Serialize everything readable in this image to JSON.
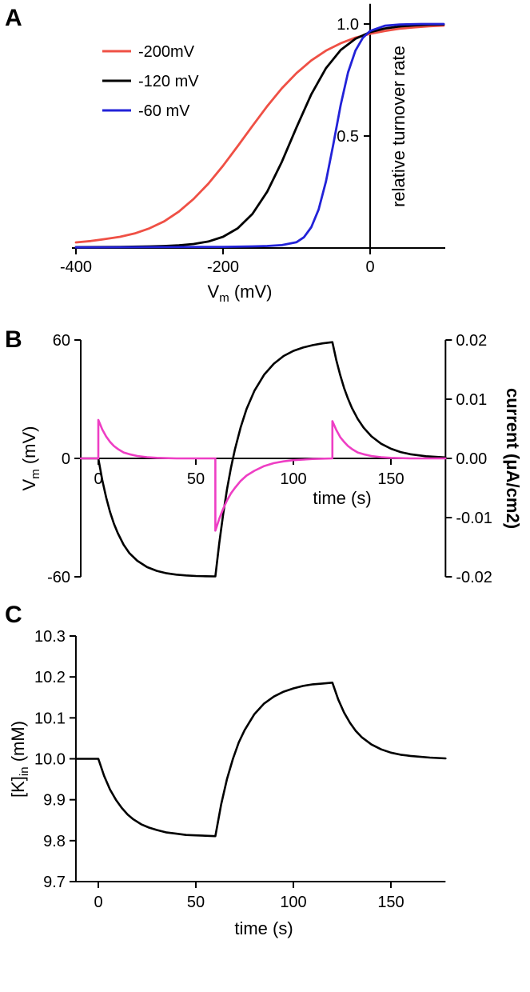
{
  "chart_data": [
    {
      "id": "A",
      "panel_label": "A",
      "type": "line",
      "title": "",
      "xlabel_parts": [
        {
          "t": "V"
        },
        {
          "t": "m",
          "sub": true
        },
        {
          "t": " (mV)"
        }
      ],
      "ylabel": "relative turnover rate",
      "xlim": [
        -400,
        100
      ],
      "ylim": [
        0,
        1.09
      ],
      "y_axis_at_x": 0,
      "grid": false,
      "x_ticks": [
        {
          "v": -400,
          "label": "-400"
        },
        {
          "v": -200,
          "label": "-200"
        },
        {
          "v": 0,
          "label": "0"
        }
      ],
      "y_ticks": [
        {
          "v": 0.5,
          "label": "0.5"
        },
        {
          "v": 1.0,
          "label": "1.0"
        }
      ],
      "legend_position": "top-left",
      "legend": [
        {
          "label": "-200mV",
          "color": "#ef5045"
        },
        {
          "label": "-120 mV",
          "color": "#000000"
        },
        {
          "label": "-60 mV",
          "color": "#2222d8"
        }
      ],
      "series": [
        {
          "key": "v-half-200",
          "name": "-200mV",
          "color": "#ef5045",
          "points": [
            [
              -400,
              0.025
            ],
            [
              -380,
              0.031
            ],
            [
              -360,
              0.04
            ],
            [
              -340,
              0.05
            ],
            [
              -320,
              0.065
            ],
            [
              -300,
              0.088
            ],
            [
              -280,
              0.119
            ],
            [
              -260,
              0.163
            ],
            [
              -240,
              0.219
            ],
            [
              -220,
              0.287
            ],
            [
              -200,
              0.367
            ],
            [
              -180,
              0.455
            ],
            [
              -160,
              0.545
            ],
            [
              -140,
              0.633
            ],
            [
              -120,
              0.713
            ],
            [
              -100,
              0.781
            ],
            [
              -80,
              0.837
            ],
            [
              -60,
              0.881
            ],
            [
              -40,
              0.914
            ],
            [
              -20,
              0.939
            ],
            [
              0,
              0.956
            ],
            [
              20,
              0.969
            ],
            [
              40,
              0.979
            ],
            [
              60,
              0.985
            ],
            [
              80,
              0.99
            ],
            [
              100,
              0.993
            ]
          ]
        },
        {
          "key": "v-half-120",
          "name": "-120 mV",
          "color": "#000000",
          "points": [
            [
              -400,
              0.004
            ],
            [
              -340,
              0.005
            ],
            [
              -300,
              0.007
            ],
            [
              -280,
              0.009
            ],
            [
              -260,
              0.012
            ],
            [
              -240,
              0.018
            ],
            [
              -220,
              0.029
            ],
            [
              -200,
              0.05
            ],
            [
              -180,
              0.088
            ],
            [
              -160,
              0.152
            ],
            [
              -140,
              0.251
            ],
            [
              -120,
              0.385
            ],
            [
              -100,
              0.539
            ],
            [
              -80,
              0.686
            ],
            [
              -60,
              0.803
            ],
            [
              -40,
              0.884
            ],
            [
              -20,
              0.934
            ],
            [
              0,
              0.964
            ],
            [
              20,
              0.98
            ],
            [
              40,
              0.989
            ],
            [
              60,
              0.994
            ],
            [
              80,
              0.997
            ],
            [
              100,
              0.998
            ]
          ]
        },
        {
          "key": "v-half-60",
          "name": "-60 mV",
          "color": "#2222d8",
          "points": [
            [
              -400,
              0.003
            ],
            [
              -300,
              0.004
            ],
            [
              -200,
              0.005
            ],
            [
              -160,
              0.007
            ],
            [
              -140,
              0.009
            ],
            [
              -120,
              0.013
            ],
            [
              -100,
              0.026
            ],
            [
              -90,
              0.048
            ],
            [
              -80,
              0.093
            ],
            [
              -70,
              0.172
            ],
            [
              -60,
              0.298
            ],
            [
              -50,
              0.464
            ],
            [
              -40,
              0.639
            ],
            [
              -30,
              0.784
            ],
            [
              -20,
              0.881
            ],
            [
              -10,
              0.938
            ],
            [
              0,
              0.969
            ],
            [
              20,
              0.992
            ],
            [
              40,
              0.998
            ],
            [
              70,
              1.0
            ],
            [
              100,
              1.0
            ]
          ]
        }
      ]
    },
    {
      "id": "B",
      "panel_label": "B",
      "type": "line",
      "title": "",
      "xlabel": "time (s)",
      "ylabel_left_parts": [
        {
          "t": "V"
        },
        {
          "t": "m",
          "sub": true
        },
        {
          "t": " (mV)"
        }
      ],
      "ylabel_right": "current (μA/cm2)",
      "right_color": "#ee3ec4",
      "xlim": [
        -9,
        178
      ],
      "ylim_left": [
        -60,
        60
      ],
      "ylim_right": [
        -0.02,
        0.02
      ],
      "grid": false,
      "x_ticks": [
        {
          "v": 0,
          "label": "0"
        },
        {
          "v": 50,
          "label": "50"
        },
        {
          "v": 100,
          "label": "100"
        },
        {
          "v": 150,
          "label": "150"
        }
      ],
      "y_ticks_left": [
        {
          "v": 60,
          "label": "60"
        },
        {
          "v": 0,
          "label": "0"
        },
        {
          "v": -60,
          "label": "-60"
        }
      ],
      "y_ticks_right": [
        {
          "v": 0.02,
          "label": "0.02"
        },
        {
          "v": 0.01,
          "label": "0.01"
        },
        {
          "v": 0,
          "label": "0.00"
        },
        {
          "v": -0.01,
          "label": "-0.01"
        },
        {
          "v": -0.02,
          "label": "-0.02"
        }
      ],
      "series": [
        {
          "key": "membrane-voltage",
          "name": "Vm",
          "axis": "left",
          "color": "#000000",
          "points": [
            [
              -9,
              0
            ],
            [
              0,
              0
            ],
            [
              2,
              -10.9
            ],
            [
              4,
              -19.8
            ],
            [
              6,
              -27.1
            ],
            [
              8,
              -33.1
            ],
            [
              10,
              -37.9
            ],
            [
              13,
              -43.8
            ],
            [
              16,
              -48.1
            ],
            [
              20,
              -51.9
            ],
            [
              25,
              -55.1
            ],
            [
              30,
              -57.0
            ],
            [
              35,
              -58.2
            ],
            [
              40,
              -58.9
            ],
            [
              45,
              -59.3
            ],
            [
              50,
              -59.6
            ],
            [
              55,
              -59.7
            ],
            [
              60,
              -59.8
            ],
            [
              62,
              -42.9
            ],
            [
              64,
              -28.2
            ],
            [
              66,
              -15.6
            ],
            [
              68,
              -4.8
            ],
            [
              70,
              4.4
            ],
            [
              73,
              15.8
            ],
            [
              76,
              25.0
            ],
            [
              80,
              34.2
            ],
            [
              85,
              42.4
            ],
            [
              90,
              48.0
            ],
            [
              95,
              51.9
            ],
            [
              100,
              54.5
            ],
            [
              105,
              56.2
            ],
            [
              110,
              57.4
            ],
            [
              115,
              58.3
            ],
            [
              120,
              58.9
            ],
            [
              122,
              49.8
            ],
            [
              124,
              42.2
            ],
            [
              126,
              35.7
            ],
            [
              128,
              30.3
            ],
            [
              130,
              25.6
            ],
            [
              133,
              20.0
            ],
            [
              136,
              15.6
            ],
            [
              140,
              11.2
            ],
            [
              145,
              7.4
            ],
            [
              150,
              4.9
            ],
            [
              155,
              3.2
            ],
            [
              160,
              2.1
            ],
            [
              168,
              1.1
            ],
            [
              178,
              0.5
            ]
          ]
        },
        {
          "key": "pump-current",
          "name": "current",
          "axis": "right",
          "color": "#ee3ec4",
          "points": [
            [
              -9,
              0
            ],
            [
              0,
              0
            ],
            [
              0,
              0.0065
            ],
            [
              2,
              0.0049
            ],
            [
              4,
              0.0037
            ],
            [
              6,
              0.0028
            ],
            [
              8,
              0.0021
            ],
            [
              10,
              0.0016
            ],
            [
              13,
              0.001
            ],
            [
              16,
              0.0007
            ],
            [
              20,
              0.0004
            ],
            [
              25,
              0.0002
            ],
            [
              30,
              0.0001
            ],
            [
              40,
              0
            ],
            [
              50,
              0
            ],
            [
              60,
              0
            ],
            [
              60,
              -0.0122
            ],
            [
              62,
              -0.0102
            ],
            [
              64,
              -0.0085
            ],
            [
              66,
              -0.0071
            ],
            [
              68,
              -0.0059
            ],
            [
              70,
              -0.005
            ],
            [
              73,
              -0.0038
            ],
            [
              76,
              -0.0029
            ],
            [
              80,
              -0.0021
            ],
            [
              85,
              -0.0013
            ],
            [
              90,
              -0.0008
            ],
            [
              95,
              -0.0005
            ],
            [
              100,
              -0.0003
            ],
            [
              105,
              -0.0002
            ],
            [
              110,
              -0.0001
            ],
            [
              120,
              0
            ],
            [
              120,
              0.0063
            ],
            [
              122,
              0.0048
            ],
            [
              124,
              0.0036
            ],
            [
              126,
              0.0028
            ],
            [
              128,
              0.0021
            ],
            [
              130,
              0.0016
            ],
            [
              133,
              0.001
            ],
            [
              136,
              0.0007
            ],
            [
              140,
              0.0004
            ],
            [
              145,
              0.0002
            ],
            [
              150,
              0.0001
            ],
            [
              160,
              0
            ],
            [
              178,
              0
            ]
          ]
        }
      ]
    },
    {
      "id": "C",
      "panel_label": "C",
      "type": "line",
      "title": "",
      "xlabel": "time  (s)",
      "ylabel_parts": [
        {
          "t": "[K]"
        },
        {
          "t": "in",
          "sub": true
        },
        {
          "t": " (mM)"
        }
      ],
      "xlim": [
        -11.5,
        178
      ],
      "ylim": [
        9.7,
        10.3
      ],
      "grid": false,
      "x_ticks": [
        {
          "v": 0,
          "label": "0"
        },
        {
          "v": 50,
          "label": "50"
        },
        {
          "v": 100,
          "label": "100"
        },
        {
          "v": 150,
          "label": "150"
        }
      ],
      "y_ticks": [
        {
          "v": 9.7,
          "label": "9.7"
        },
        {
          "v": 9.8,
          "label": "9.8"
        },
        {
          "v": 9.9,
          "label": "9.9"
        },
        {
          "v": 10.0,
          "label": "10.0"
        },
        {
          "v": 10.1,
          "label": "10.1"
        },
        {
          "v": 10.2,
          "label": "10.2"
        },
        {
          "v": 10.3,
          "label": "10.3"
        }
      ],
      "series": [
        {
          "key": "intracellular-potassium",
          "name": "[K]in",
          "color": "#000000",
          "points": [
            [
              -11.5,
              10.0
            ],
            [
              0,
              10.0
            ],
            [
              3,
              9.958
            ],
            [
              6,
              9.925
            ],
            [
              9,
              9.9
            ],
            [
              12,
              9.88
            ],
            [
              15,
              9.864
            ],
            [
              18,
              9.852
            ],
            [
              22,
              9.84
            ],
            [
              26,
              9.832
            ],
            [
              30,
              9.826
            ],
            [
              35,
              9.82
            ],
            [
              40,
              9.817
            ],
            [
              45,
              9.814
            ],
            [
              50,
              9.813
            ],
            [
              55,
              9.812
            ],
            [
              60,
              9.811
            ],
            [
              63,
              9.889
            ],
            [
              66,
              9.951
            ],
            [
              69,
              10.0
            ],
            [
              72,
              10.04
            ],
            [
              75,
              10.07
            ],
            [
              80,
              10.109
            ],
            [
              85,
              10.135
            ],
            [
              90,
              10.152
            ],
            [
              95,
              10.164
            ],
            [
              100,
              10.172
            ],
            [
              105,
              10.178
            ],
            [
              110,
              10.182
            ],
            [
              115,
              10.184
            ],
            [
              120,
              10.186
            ],
            [
              123,
              10.145
            ],
            [
              126,
              10.113
            ],
            [
              129,
              10.088
            ],
            [
              132,
              10.068
            ],
            [
              135,
              10.053
            ],
            [
              140,
              10.035
            ],
            [
              145,
              10.023
            ],
            [
              150,
              10.015
            ],
            [
              155,
              10.01
            ],
            [
              160,
              10.007
            ],
            [
              170,
              10.003
            ],
            [
              178,
              10.001
            ]
          ]
        }
      ]
    }
  ]
}
